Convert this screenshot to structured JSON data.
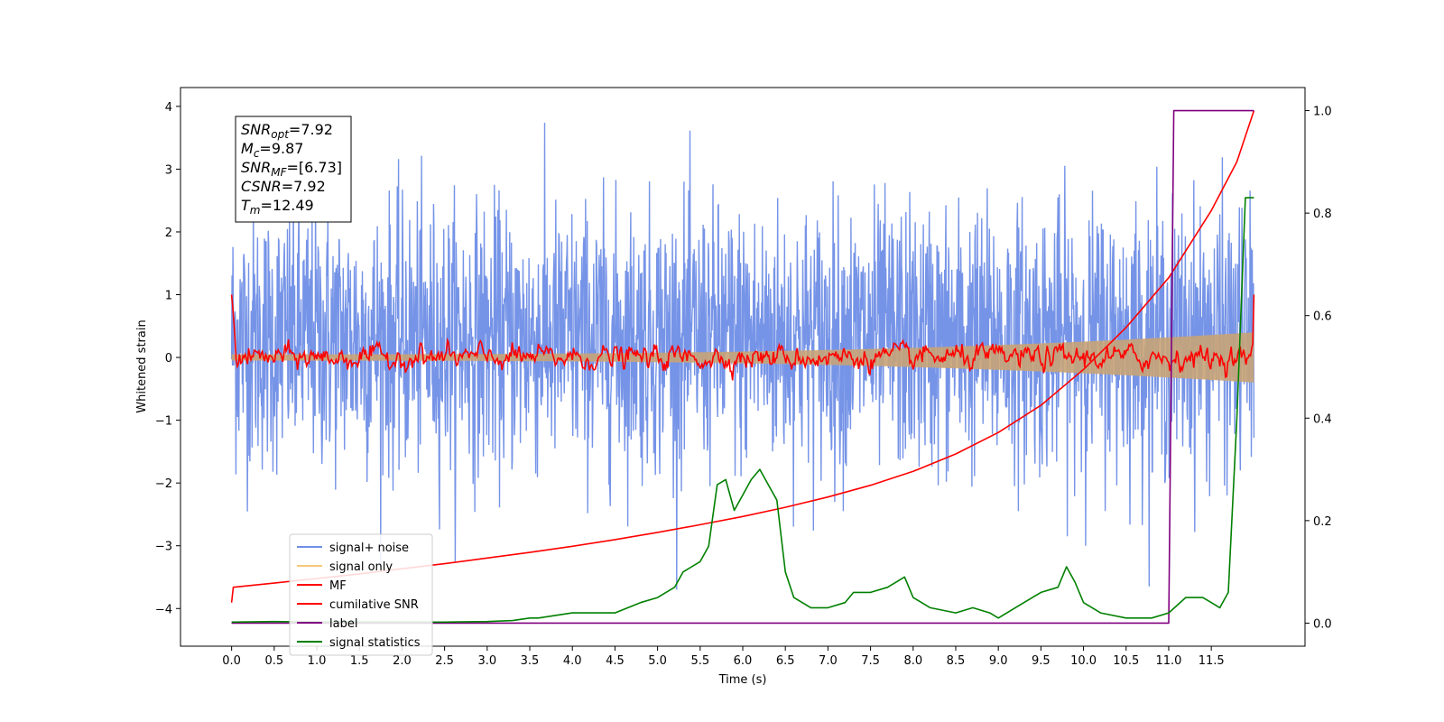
{
  "chart_data": {
    "type": "line",
    "xlabel": "Time (s)",
    "ylabel": "Whitened strain",
    "xlim": [
      -0.6,
      12.6
    ],
    "ylim": [
      -4.6,
      4.3
    ],
    "y2lim": [
      -0.045,
      1.045
    ],
    "xticks": [
      0.0,
      0.5,
      1.0,
      1.5,
      2.0,
      2.5,
      3.0,
      3.5,
      4.0,
      4.5,
      5.0,
      5.5,
      6.0,
      6.5,
      7.0,
      7.5,
      8.0,
      8.5,
      9.0,
      9.5,
      10.0,
      10.5,
      11.0,
      11.5
    ],
    "xtick_labels": [
      "0.0",
      "0.5",
      "1.0",
      "1.5",
      "2.0",
      "2.5",
      "3.0",
      "3.5",
      "4.0",
      "4.5",
      "5.0",
      "5.5",
      "6.0",
      "6.5",
      "7.0",
      "7.5",
      "8.0",
      "8.5",
      "9.0",
      "9.5",
      "10.0",
      "10.5",
      "11.0",
      "11.5"
    ],
    "yticks": [
      -4,
      -3,
      -2,
      -1,
      0,
      1,
      2,
      3,
      4
    ],
    "ytick_labels": [
      "−4",
      "−3",
      "−2",
      "−1",
      "0",
      "1",
      "2",
      "3",
      "4"
    ],
    "y2ticks": [
      0.0,
      0.2,
      0.4,
      0.6,
      0.8,
      1.0
    ],
    "y2tick_labels": [
      "0.0",
      "0.2",
      "0.4",
      "0.6",
      "0.8",
      "1.0"
    ],
    "annotation": {
      "lines": [
        {
          "var": "SNR",
          "sub": "opt",
          "value": "=7.92"
        },
        {
          "var": "M",
          "sub": "c",
          "value": "=9.87"
        },
        {
          "var": "SNR",
          "sub": "MF",
          "value": "=[6.73]"
        },
        {
          "var": "CSNR",
          "sub": "",
          "value": "=7.92"
        },
        {
          "var": "T",
          "sub": "m",
          "value": "=12.49"
        }
      ]
    },
    "legend": {
      "placement": "lower-left",
      "entries": [
        {
          "label": "signal+ noise",
          "color": "#6f8ee6"
        },
        {
          "label": "signal only",
          "color": "#f5c97a"
        },
        {
          "label": "MF",
          "color": "#ff0000"
        },
        {
          "label": "cumilative SNR",
          "color": "#ff0000"
        },
        {
          "label": "label",
          "color": "#800080"
        },
        {
          "label": "signal statistics",
          "color": "#008000"
        }
      ]
    },
    "series": [
      {
        "name": "signal+ noise",
        "axis": "left",
        "kind": "noise",
        "color": "#6f8ee6",
        "x_range": [
          0.0,
          12.0
        ],
        "center": 0.3,
        "spread": 1.05,
        "peak_max": 3.9,
        "peak_min": -3.7
      },
      {
        "name": "signal only",
        "axis": "left",
        "kind": "chirp-band",
        "color": "#c8a377",
        "x_range": [
          0.0,
          12.0
        ],
        "envelope_start": 0.05,
        "envelope_end": 0.4
      },
      {
        "name": "MF",
        "axis": "left",
        "kind": "matched-filter",
        "color": "#ff0000",
        "x_range": [
          0.0,
          12.0
        ],
        "start_value": 1.0,
        "end_value": 1.0,
        "amplitude": 0.12
      },
      {
        "name": "cumilative SNR",
        "axis": "right",
        "color": "#ff0000",
        "x": [
          0.0,
          0.02,
          0.5,
          1.0,
          1.5,
          2.0,
          2.5,
          3.0,
          3.5,
          4.0,
          4.5,
          5.0,
          5.5,
          6.0,
          6.5,
          7.0,
          7.5,
          8.0,
          8.5,
          9.0,
          9.5,
          10.0,
          10.5,
          11.0,
          11.5,
          11.8,
          12.0
        ],
        "y": [
          0.04,
          0.07,
          0.078,
          0.087,
          0.096,
          0.106,
          0.116,
          0.127,
          0.138,
          0.15,
          0.163,
          0.177,
          0.192,
          0.208,
          0.226,
          0.246,
          0.269,
          0.296,
          0.33,
          0.372,
          0.425,
          0.495,
          0.577,
          0.674,
          0.805,
          0.9,
          1.0
        ]
      },
      {
        "name": "label",
        "axis": "right",
        "color": "#800080",
        "x": [
          0.0,
          11.0,
          11.06,
          12.0
        ],
        "y": [
          0.0,
          0.0,
          1.0,
          1.0
        ]
      },
      {
        "name": "signal statistics",
        "axis": "right",
        "color": "#008000",
        "x": [
          0.0,
          0.5,
          1.0,
          1.5,
          2.0,
          2.5,
          3.0,
          3.3,
          3.5,
          3.6,
          3.8,
          4.0,
          4.2,
          4.5,
          4.8,
          5.0,
          5.2,
          5.3,
          5.5,
          5.6,
          5.7,
          5.8,
          5.9,
          6.0,
          6.1,
          6.2,
          6.3,
          6.4,
          6.5,
          6.6,
          6.8,
          7.0,
          7.2,
          7.3,
          7.5,
          7.7,
          7.9,
          8.0,
          8.2,
          8.5,
          8.7,
          8.9,
          9.0,
          9.3,
          9.5,
          9.7,
          9.8,
          9.9,
          10.0,
          10.2,
          10.5,
          10.8,
          11.0,
          11.2,
          11.4,
          11.5,
          11.6,
          11.7,
          11.8,
          11.9,
          12.0
        ],
        "y": [
          0.002,
          0.003,
          0.002,
          0.002,
          0.002,
          0.002,
          0.003,
          0.005,
          0.01,
          0.01,
          0.015,
          0.02,
          0.02,
          0.02,
          0.04,
          0.05,
          0.07,
          0.1,
          0.12,
          0.15,
          0.27,
          0.28,
          0.22,
          0.25,
          0.28,
          0.3,
          0.27,
          0.24,
          0.1,
          0.05,
          0.03,
          0.03,
          0.04,
          0.06,
          0.06,
          0.07,
          0.09,
          0.05,
          0.03,
          0.02,
          0.03,
          0.02,
          0.01,
          0.04,
          0.06,
          0.07,
          0.11,
          0.08,
          0.04,
          0.02,
          0.01,
          0.01,
          0.02,
          0.05,
          0.05,
          0.04,
          0.03,
          0.06,
          0.4,
          0.83,
          0.83
        ]
      }
    ]
  }
}
